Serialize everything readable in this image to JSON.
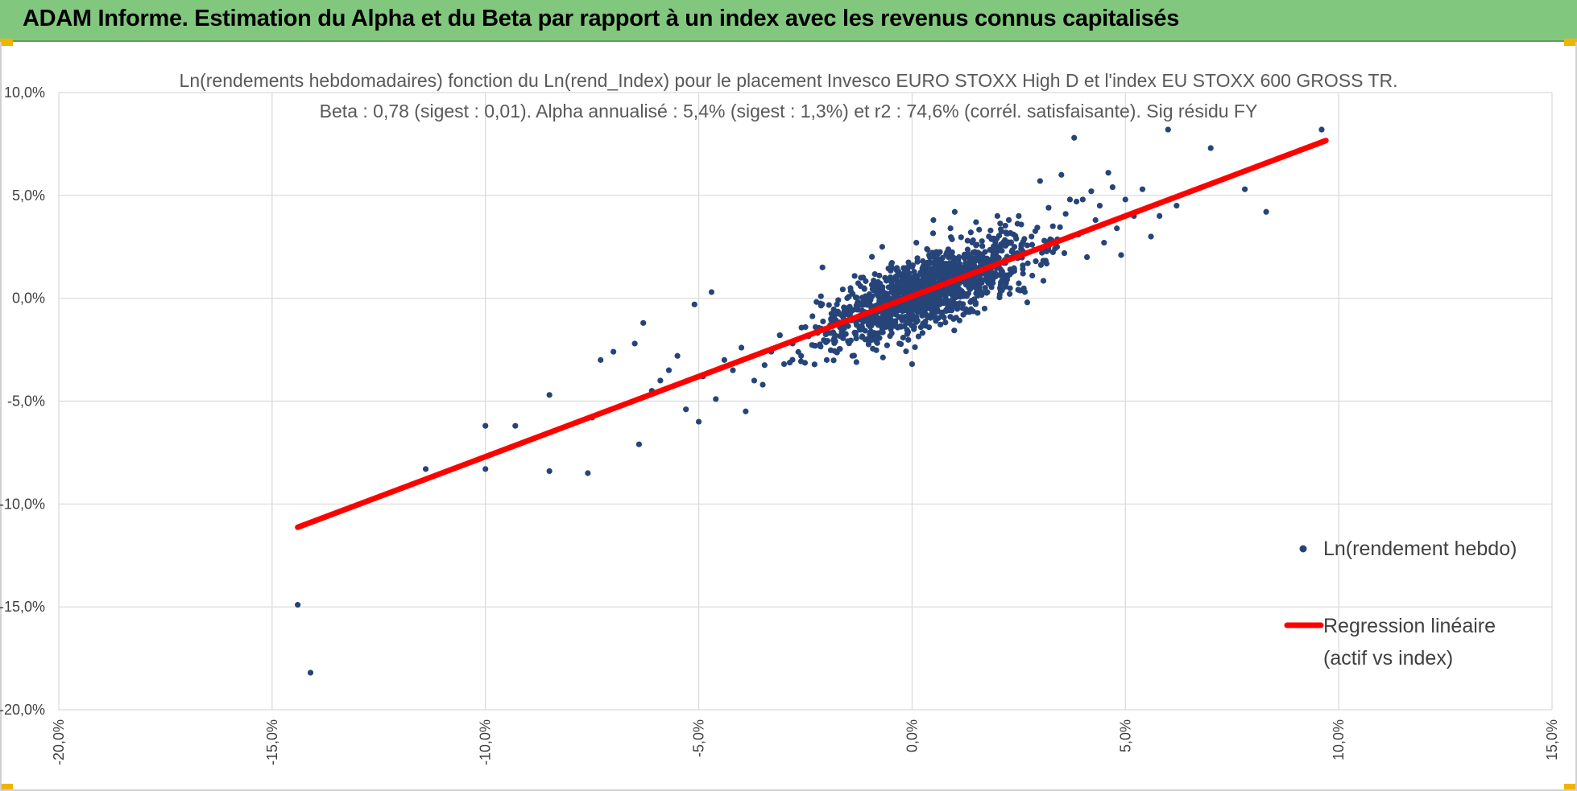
{
  "header": {
    "title": "ADAM Informe. Estimation du Alpha et du Beta par rapport à un index avec les revenus connus capitalisés"
  },
  "colors": {
    "header_bg": "#82c77e",
    "points": "#264478",
    "regression": "#ff0000",
    "grid": "#d9d9d9",
    "accent": "#f0b400"
  },
  "chart_data": {
    "type": "scatter",
    "title_line1": "Ln(rendements hebdomadaires) fonction du Ln(rend_Index) pour le placement Invesco EURO STOXX High D et l'index EU STOXX 600 GROSS TR.",
    "title_line2": "Beta : 0,78 (sigest : 0,01). Alpha annualisé : 5,4% (sigest : 1,3%) et r2 : 74,6% (corrél. satisfaisante). Sig résidu FY",
    "xlim": [
      -0.2,
      0.15
    ],
    "ylim": [
      -0.2,
      0.1
    ],
    "x_ticks": [
      -0.2,
      -0.15,
      -0.1,
      -0.05,
      0.0,
      0.05,
      0.1,
      0.15
    ],
    "y_ticks": [
      -0.2,
      -0.15,
      -0.1,
      -0.05,
      0.0,
      0.05,
      0.1
    ],
    "x_tick_labels": [
      "-20,0%",
      "-15,0%",
      "-10,0%",
      "-5,0%",
      "0,0%",
      "5,0%",
      "10,0%",
      "15,0%"
    ],
    "y_tick_labels": [
      "-20,0%",
      "-15,0%",
      "-10,0%",
      "-5,0%",
      "0,0%",
      "5,0%",
      "10,0%"
    ],
    "grid": true,
    "legend_position": "right",
    "legend": {
      "scatter_label": "Ln(rendement hebdo)",
      "line_label_1": "Regression linéaire",
      "line_label_2": "(actif vs index)"
    },
    "regression": {
      "beta": 0.78,
      "intercept": 0.001,
      "x_range": [
        -0.144,
        0.097
      ]
    },
    "series": [
      {
        "type": "scatter",
        "points": [
          [
            -0.144,
            -0.149
          ],
          [
            -0.141,
            -0.182
          ],
          [
            -0.114,
            -0.083
          ],
          [
            -0.1,
            -0.062
          ],
          [
            -0.1,
            -0.083
          ],
          [
            -0.093,
            -0.062
          ],
          [
            -0.085,
            -0.047
          ],
          [
            -0.085,
            -0.084
          ],
          [
            -0.076,
            -0.085
          ],
          [
            -0.075,
            -0.058
          ],
          [
            -0.073,
            -0.03
          ],
          [
            -0.07,
            -0.026
          ],
          [
            -0.065,
            -0.022
          ],
          [
            -0.064,
            -0.071
          ],
          [
            -0.063,
            -0.012
          ],
          [
            -0.061,
            -0.045
          ],
          [
            -0.059,
            -0.04
          ],
          [
            -0.057,
            -0.035
          ],
          [
            -0.055,
            -0.028
          ],
          [
            -0.053,
            -0.054
          ],
          [
            -0.051,
            -0.003
          ],
          [
            -0.05,
            -0.06
          ],
          [
            -0.049,
            -0.038
          ],
          [
            -0.047,
            0.003
          ],
          [
            -0.046,
            -0.049
          ],
          [
            -0.044,
            -0.03
          ],
          [
            -0.042,
            -0.035
          ],
          [
            -0.04,
            -0.024
          ],
          [
            -0.039,
            -0.055
          ],
          [
            -0.037,
            -0.04
          ],
          [
            -0.035,
            -0.042
          ],
          [
            -0.033,
            -0.026
          ],
          [
            -0.031,
            -0.018
          ],
          [
            -0.03,
            -0.032
          ],
          [
            -0.028,
            -0.022
          ],
          [
            -0.026,
            -0.028
          ],
          [
            -0.025,
            -0.014
          ],
          [
            -0.023,
            -0.023
          ],
          [
            -0.021,
            0.015
          ],
          [
            -0.02,
            -0.03
          ],
          [
            -0.019,
            -0.01
          ],
          [
            -0.018,
            -0.021
          ],
          [
            -0.016,
            -0.018
          ],
          [
            -0.015,
            -0.005
          ],
          [
            -0.014,
            -0.028
          ],
          [
            -0.013,
            -0.013
          ],
          [
            -0.012,
            0.01
          ],
          [
            -0.011,
            -0.02
          ],
          [
            -0.01,
            0.002
          ],
          [
            -0.009,
            -0.012
          ],
          [
            -0.008,
            -0.017
          ],
          [
            -0.007,
            0.025
          ],
          [
            -0.006,
            -0.008
          ],
          [
            -0.005,
            -0.015
          ],
          [
            -0.004,
            0.004
          ],
          [
            -0.003,
            -0.022
          ],
          [
            -0.002,
            0.002
          ],
          [
            -0.001,
            0.015
          ],
          [
            0.0,
            -0.032
          ],
          [
            0.001,
            0.027
          ],
          [
            0.002,
            -0.003
          ],
          [
            0.003,
            0.007
          ],
          [
            0.004,
            0.021
          ],
          [
            0.005,
            0.038
          ],
          [
            0.006,
            -0.006
          ],
          [
            0.007,
            0.012
          ],
          [
            0.008,
            0.002
          ],
          [
            0.009,
            0.034
          ],
          [
            0.01,
            0.042
          ],
          [
            0.011,
            0.02
          ],
          [
            0.012,
            -0.008
          ],
          [
            0.013,
            0.028
          ],
          [
            0.014,
            0.01
          ],
          [
            0.015,
            0.037
          ],
          [
            0.016,
            0.015
          ],
          [
            0.017,
            -0.005
          ],
          [
            0.018,
            0.03
          ],
          [
            0.019,
            0.021
          ],
          [
            0.02,
            0.04
          ],
          [
            0.021,
            0.008
          ],
          [
            0.022,
            0.032
          ],
          [
            0.023,
            0.014
          ],
          [
            0.024,
            0.025
          ],
          [
            0.025,
            0.04
          ],
          [
            0.026,
            0.012
          ],
          [
            0.027,
            -0.002
          ],
          [
            0.028,
            0.03
          ],
          [
            0.029,
            0.018
          ],
          [
            0.03,
            0.057
          ],
          [
            0.031,
            0.028
          ],
          [
            0.032,
            0.044
          ],
          [
            0.033,
            0.035
          ],
          [
            0.034,
            0.025
          ],
          [
            0.035,
            0.06
          ],
          [
            0.036,
            0.041
          ],
          [
            0.037,
            0.048
          ],
          [
            0.038,
            0.078
          ],
          [
            0.039,
            0.031
          ],
          [
            0.04,
            0.048
          ],
          [
            0.041,
            0.02
          ],
          [
            0.042,
            0.052
          ],
          [
            0.043,
            0.038
          ],
          [
            0.044,
            0.045
          ],
          [
            0.045,
            0.027
          ],
          [
            0.046,
            0.061
          ],
          [
            0.047,
            0.054
          ],
          [
            0.048,
            0.034
          ],
          [
            0.049,
            0.021
          ],
          [
            0.05,
            0.048
          ],
          [
            0.052,
            0.04
          ],
          [
            0.054,
            0.053
          ],
          [
            0.056,
            0.03
          ],
          [
            0.058,
            0.04
          ],
          [
            0.06,
            0.082
          ],
          [
            0.062,
            0.045
          ],
          [
            0.07,
            0.073
          ],
          [
            0.078,
            0.053
          ],
          [
            0.083,
            0.042
          ],
          [
            0.096,
            0.082
          ]
        ]
      }
    ]
  }
}
